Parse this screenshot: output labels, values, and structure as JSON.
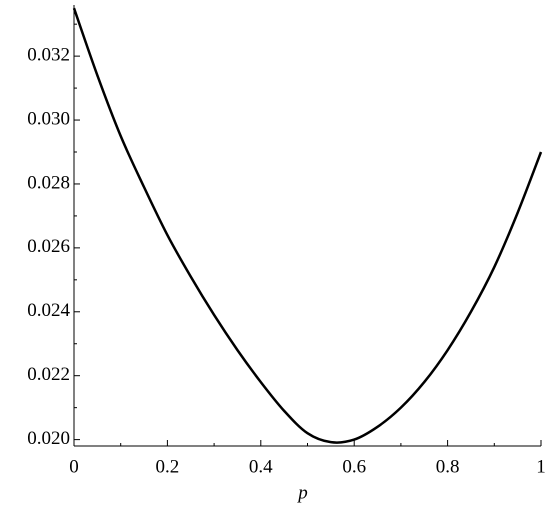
{
  "chart_data": {
    "type": "line",
    "x_label": "p",
    "x": [
      0,
      0.05,
      0.1,
      0.15,
      0.2,
      0.25,
      0.3,
      0.35,
      0.4,
      0.45,
      0.5,
      0.55,
      0.6,
      0.65,
      0.7,
      0.75,
      0.8,
      0.85,
      0.9,
      0.95,
      1
    ],
    "series": [
      {
        "color": "#000000",
        "values": [
          0.0335,
          0.0314,
          0.0295,
          0.0279,
          0.0264,
          0.0251,
          0.0239,
          0.0228,
          0.0218,
          0.0209,
          0.0202,
          0.01992,
          0.02,
          0.0204,
          0.021,
          0.0218,
          0.0228,
          0.024,
          0.0254,
          0.0271,
          0.029
        ]
      }
    ],
    "xlim": [
      0,
      1
    ],
    "xticks": [
      0,
      0.2,
      0.4,
      0.6,
      0.8,
      1
    ],
    "xminorticks": [
      0.1,
      0.3,
      0.5,
      0.7,
      0.9
    ],
    "ylim": [
      0.0198,
      0.0336
    ],
    "yticks": [
      {
        "value": 0.02,
        "label": "0.020"
      },
      {
        "value": 0.022,
        "label": "0.022"
      },
      {
        "value": 0.024,
        "label": "0.024"
      },
      {
        "value": 0.026,
        "label": "0.026"
      },
      {
        "value": 0.028,
        "label": "0.028"
      },
      {
        "value": 0.03,
        "label": "0.030"
      },
      {
        "value": 0.032,
        "label": "0.032"
      }
    ],
    "yminorticks": [
      0.021,
      0.023,
      0.025,
      0.027,
      0.029,
      0.031,
      0.033
    ],
    "grid": false
  }
}
